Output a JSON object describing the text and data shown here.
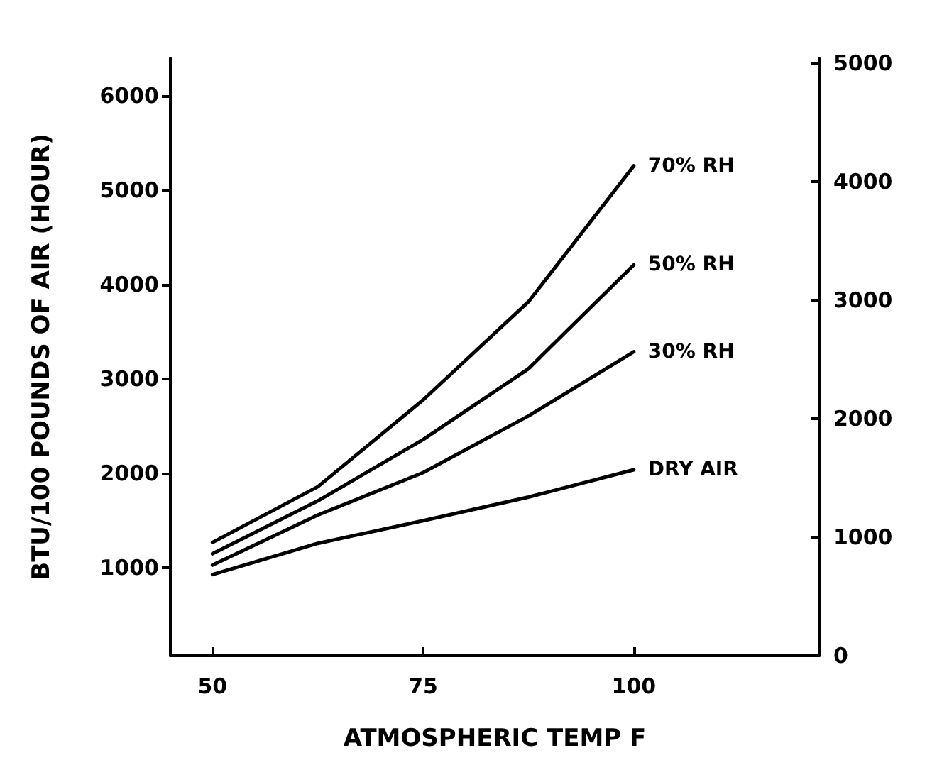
{
  "chart_data": {
    "type": "line",
    "xlabel": "ATMOSPHERIC TEMP F",
    "ylabel": "BTU/100 POUNDS OF AIR (HOUR)",
    "x": [
      50,
      62.5,
      75,
      87.5,
      100
    ],
    "series": [
      {
        "name": "70% RH",
        "color": "#000000",
        "values": [
          1270,
          1860,
          2780,
          3820,
          5260
        ]
      },
      {
        "name": "50% RH",
        "color": "#000000",
        "values": [
          1150,
          1710,
          2360,
          3110,
          4210
        ]
      },
      {
        "name": "30% RH",
        "color": "#000000",
        "values": [
          1030,
          1560,
          2010,
          2610,
          3290
        ]
      },
      {
        "name": "DRY AIR",
        "color": "#000000",
        "values": [
          930,
          1260,
          1500,
          1750,
          2040
        ]
      }
    ],
    "xlim": [
      45,
      122
    ],
    "xticks": [
      50,
      75,
      100
    ],
    "ylim": [
      70,
      6400
    ],
    "yticks": [
      1000,
      2000,
      3000,
      4000,
      5000,
      6000
    ],
    "y2lim": [
      0,
      5040
    ],
    "y2ticks": [
      0,
      1000,
      2000,
      3000,
      4000,
      5000
    ],
    "marker": "none",
    "line_style": "solid",
    "grid": false,
    "legend": false
  }
}
